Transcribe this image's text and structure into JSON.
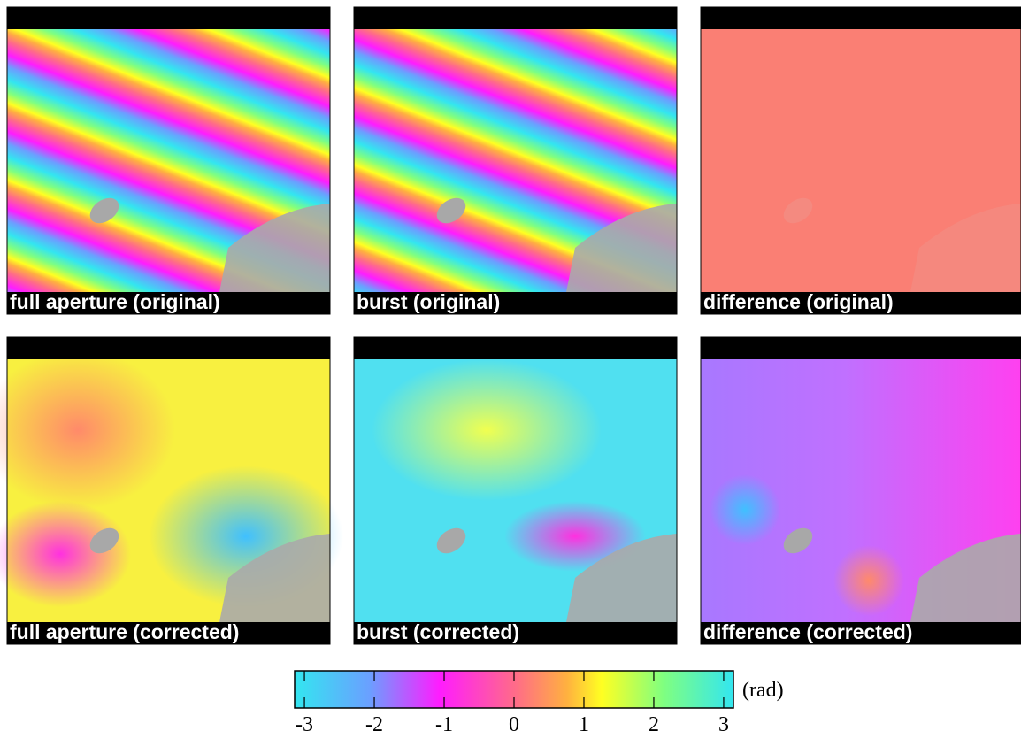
{
  "panels": [
    {
      "label": "full aperture (original)"
    },
    {
      "label": "burst (original)"
    },
    {
      "label": "difference (original)"
    },
    {
      "label": "full aperture (corrected)"
    },
    {
      "label": "burst (corrected)"
    },
    {
      "label": "difference (corrected)"
    }
  ],
  "colorbar": {
    "label": "(rad)",
    "lim": [
      -3.14,
      3.14
    ],
    "ticks": [
      -3,
      -2,
      -1,
      0,
      1,
      2,
      3
    ]
  }
}
